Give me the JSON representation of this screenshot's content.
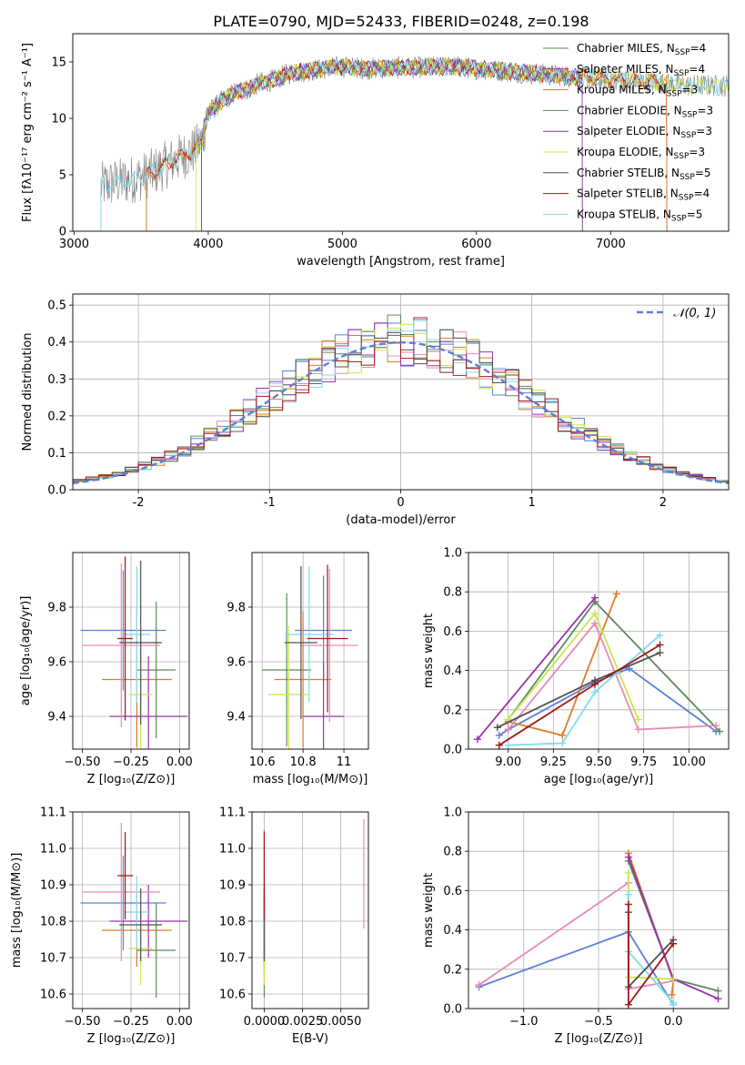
{
  "title": "PLATE=0790, MJD=52433, FIBERID=0248, z=0.198",
  "colors": {
    "grey": "#808080",
    "dark_grey": "#505050",
    "blue": "#5b7fd6",
    "orange": "#e07b28",
    "green": "#5a8a5a",
    "purple": "#9b30b0",
    "pink": "#e68ab8",
    "yellowgreen": "#c8e84a",
    "cyan": "#7fdcea",
    "red": "#a01818",
    "grid": "#b0b0b0"
  },
  "chart_data": [
    {
      "id": "spectrum",
      "type": "line",
      "xlabel": "wavelength [Angstrom, rest frame]",
      "ylabel": "Flux [fλ10⁻¹⁷ erg cm⁻² s⁻¹ A⁻¹]",
      "xlim": [
        2990,
        7880
      ],
      "ylim": [
        0,
        17.5
      ],
      "xticks": [
        3000,
        4000,
        5000,
        6000,
        7000
      ],
      "yticks": [
        0,
        5,
        10,
        15
      ],
      "grid": false,
      "legend_position": "upper right",
      "legend": [
        {
          "label": "Chabrier MILES, N",
          "sub": "SSP",
          "tail": "=4",
          "color": "#5a8a5a"
        },
        {
          "label": "Salpeter MILES, N",
          "sub": "SSP",
          "tail": "=4",
          "color": "#9b30b0"
        },
        {
          "label": "Kroupa MILES, N",
          "sub": "SSP",
          "tail": "=3",
          "color": "#e07b28"
        },
        {
          "label": "Chabrier ELODIE, N",
          "sub": "SSP",
          "tail": "=3",
          "color": "#5a8a5a"
        },
        {
          "label": "Salpeter ELODIE, N",
          "sub": "SSP",
          "tail": "=3",
          "color": "#9b30b0"
        },
        {
          "label": "Kroupa ELODIE, N",
          "sub": "SSP",
          "tail": "=3",
          "color": "#c8e84a"
        },
        {
          "label": "Chabrier STELIB, N",
          "sub": "SSP",
          "tail": "=5",
          "color": "#505050"
        },
        {
          "label": "Salpeter STELIB, N",
          "sub": "SSP",
          "tail": "=4",
          "color": "#a01818"
        },
        {
          "label": "Kroupa STELIB, N",
          "sub": "SSP",
          "tail": "=5",
          "color": "#7fdcea"
        }
      ],
      "continuum": {
        "x": [
          3200,
          3300,
          3400,
          3500,
          3600,
          3700,
          3800,
          3900,
          3950,
          4000,
          4100,
          4200,
          4300,
          4400,
          4500,
          4600,
          4800,
          5000,
          5200,
          5400,
          5600,
          5800,
          6000,
          6200,
          6400,
          6600,
          6800,
          7000,
          7200,
          7400,
          7600
        ],
        "y": [
          4.0,
          4.3,
          4.5,
          4.8,
          5.3,
          6.0,
          6.6,
          7.2,
          8.0,
          10.5,
          11.5,
          12.3,
          12.6,
          13.2,
          13.4,
          14.0,
          14.3,
          14.6,
          14.4,
          14.5,
          14.5,
          14.6,
          14.4,
          14.2,
          14.0,
          13.8,
          13.6,
          13.4,
          13.3,
          13.1,
          12.9
        ]
      }
    },
    {
      "id": "residuals",
      "type": "histogram",
      "xlabel": "(data-model)/error",
      "ylabel": "Normed distribution",
      "xlim": [
        -2.5,
        2.5
      ],
      "ylim": [
        0,
        0.53
      ],
      "xticks": [
        -2,
        -1,
        0,
        1,
        2
      ],
      "yticks": [
        0.0,
        0.1,
        0.2,
        0.3,
        0.4,
        0.5
      ],
      "grid": true,
      "legend_position": "upper right",
      "normal_label": "𝒩(0, 1)",
      "bin_width": 0.1
    },
    {
      "id": "age_vs_Z",
      "type": "errorbar",
      "xlabel": "Z [log₁₀(Z/Z⊙)]",
      "ylabel": "age  [log₁₀(age/yr)]",
      "xlim": [
        -0.55,
        0.05
      ],
      "ylim": [
        9.28,
        10.0
      ],
      "xticks": [
        -0.5,
        -0.25,
        0.0
      ],
      "xticklabels": [
        "−0.50",
        "−0.25",
        "0.00"
      ],
      "yticks": [
        9.4,
        9.6,
        9.8
      ],
      "grid": true,
      "points": [
        {
          "x": -0.29,
          "y": 9.715,
          "xerr": 0.22,
          "yerr": 0.22,
          "color": "#5b7fd6"
        },
        {
          "x": -0.22,
          "y": 9.535,
          "xerr": 0.18,
          "yerr": 0.25,
          "color": "#e07b28"
        },
        {
          "x": -0.12,
          "y": 9.57,
          "xerr": 0.1,
          "yerr": 0.25,
          "color": "#5a8a5a"
        },
        {
          "x": -0.16,
          "y": 9.4,
          "xerr": 0.2,
          "yerr": 0.22,
          "color": "#9b30b0"
        },
        {
          "x": -0.3,
          "y": 9.66,
          "xerr": 0.2,
          "yerr": 0.3,
          "color": "#e68ab8"
        },
        {
          "x": -0.2,
          "y": 9.48,
          "xerr": 0.06,
          "yerr": 0.25,
          "color": "#c8e84a"
        },
        {
          "x": -0.22,
          "y": 9.7,
          "xerr": 0.07,
          "yerr": 0.25,
          "color": "#7fdcea"
        },
        {
          "x": -0.2,
          "y": 9.67,
          "xerr": 0.11,
          "yerr": 0.3,
          "color": "#505050"
        },
        {
          "x": -0.28,
          "y": 9.685,
          "xerr": 0.04,
          "yerr": 0.3,
          "color": "#a01818"
        }
      ]
    },
    {
      "id": "age_vs_mass",
      "type": "errorbar",
      "xlabel": "mass [log₁₀(M/M⊙)]",
      "ylabel": "",
      "xlim": [
        10.55,
        11.12
      ],
      "ylim": [
        9.28,
        10.0
      ],
      "xticks": [
        10.6,
        10.8,
        11.0
      ],
      "yticks": [
        9.4,
        9.6,
        9.8
      ],
      "grid": true,
      "points": [
        {
          "x": 10.9,
          "y": 9.715,
          "xerr": 0.14,
          "yerr": 0.2,
          "color": "#5b7fd6"
        },
        {
          "x": 10.8,
          "y": 9.535,
          "xerr": 0.14,
          "yerr": 0.25,
          "color": "#e07b28"
        },
        {
          "x": 10.72,
          "y": 9.57,
          "xerr": 0.12,
          "yerr": 0.28,
          "color": "#5a8a5a"
        },
        {
          "x": 10.9,
          "y": 9.4,
          "xerr": 0.1,
          "yerr": 0.2,
          "color": "#9b30b0"
        },
        {
          "x": 10.93,
          "y": 9.66,
          "xerr": 0.14,
          "yerr": 0.28,
          "color": "#e68ab8"
        },
        {
          "x": 10.73,
          "y": 9.48,
          "xerr": 0.1,
          "yerr": 0.25,
          "color": "#c8e84a"
        },
        {
          "x": 10.83,
          "y": 9.7,
          "xerr": 0.12,
          "yerr": 0.25,
          "color": "#7fdcea"
        },
        {
          "x": 10.79,
          "y": 9.67,
          "xerr": 0.08,
          "yerr": 0.28,
          "color": "#505050"
        },
        {
          "x": 10.92,
          "y": 9.685,
          "xerr": 0.1,
          "yerr": 0.27,
          "color": "#a01818"
        }
      ]
    },
    {
      "id": "weight_vs_age",
      "type": "line",
      "xlabel": "age  [log₁₀(age/yr)]",
      "ylabel": "mass weight",
      "xlim": [
        8.78,
        10.22
      ],
      "ylim": [
        0,
        1.0
      ],
      "xticks": [
        9.0,
        9.25,
        9.5,
        9.75,
        10.0
      ],
      "xticklabels": [
        "9.00",
        "9.25",
        "9.50",
        "9.75",
        "10.00"
      ],
      "yticks": [
        0.0,
        0.2,
        0.4,
        0.6,
        0.8,
        1.0
      ],
      "grid": true,
      "series": [
        {
          "color": "#5b7fd6",
          "x": [
            8.95,
            9.0,
            9.48,
            9.67,
            10.15
          ],
          "y": [
            0.07,
            0.1,
            0.34,
            0.41,
            0.09
          ]
        },
        {
          "color": "#e07b28",
          "x": [
            9.0,
            9.3,
            9.6
          ],
          "y": [
            0.14,
            0.07,
            0.79
          ]
        },
        {
          "color": "#5a8a5a",
          "x": [
            9.0,
            9.48,
            10.17
          ],
          "y": [
            0.15,
            0.75,
            0.09
          ]
        },
        {
          "color": "#9b30b0",
          "x": [
            8.83,
            9.48
          ],
          "y": [
            0.05,
            0.77
          ]
        },
        {
          "color": "#e68ab8",
          "x": [
            9.0,
            9.48,
            9.72,
            10.15
          ],
          "y": [
            0.1,
            0.64,
            0.1,
            0.12
          ]
        },
        {
          "color": "#c8e84a",
          "x": [
            9.0,
            9.48,
            9.72
          ],
          "y": [
            0.15,
            0.69,
            0.15
          ]
        },
        {
          "color": "#7fdcea",
          "x": [
            9.0,
            9.3,
            9.48,
            9.84
          ],
          "y": [
            0.02,
            0.03,
            0.29,
            0.58
          ]
        },
        {
          "color": "#505050",
          "x": [
            8.94,
            9.48,
            9.84
          ],
          "y": [
            0.11,
            0.35,
            0.49
          ]
        },
        {
          "color": "#a01818",
          "x": [
            8.95,
            9.48,
            9.84
          ],
          "y": [
            0.02,
            0.33,
            0.53
          ]
        }
      ]
    },
    {
      "id": "mass_vs_Z",
      "type": "errorbar",
      "xlabel": "Z [log₁₀(Z/Z⊙)]",
      "ylabel": "mass [log₁₀(M/M⊙)]",
      "xlim": [
        -0.55,
        0.05
      ],
      "ylim": [
        10.56,
        11.1
      ],
      "xticks": [
        -0.5,
        -0.25,
        0.0
      ],
      "xticklabels": [
        "−0.50",
        "−0.25",
        "0.00"
      ],
      "yticks": [
        10.6,
        10.7,
        10.8,
        10.9,
        11.0,
        11.1
      ],
      "grid": true,
      "points": [
        {
          "x": -0.29,
          "y": 10.85,
          "xerr": 0.22,
          "yerr": 0.13,
          "color": "#5b7fd6"
        },
        {
          "x": -0.22,
          "y": 10.775,
          "xerr": 0.18,
          "yerr": 0.1,
          "color": "#e07b28"
        },
        {
          "x": -0.12,
          "y": 10.72,
          "xerr": 0.1,
          "yerr": 0.13,
          "color": "#5a8a5a"
        },
        {
          "x": -0.16,
          "y": 10.8,
          "xerr": 0.2,
          "yerr": 0.1,
          "color": "#9b30b0"
        },
        {
          "x": -0.3,
          "y": 10.88,
          "xerr": 0.2,
          "yerr": 0.19,
          "color": "#e68ab8"
        },
        {
          "x": -0.2,
          "y": 10.725,
          "xerr": 0.06,
          "yerr": 0.1,
          "color": "#c8e84a"
        },
        {
          "x": -0.22,
          "y": 10.825,
          "xerr": 0.07,
          "yerr": 0.1,
          "color": "#7fdcea"
        },
        {
          "x": -0.2,
          "y": 10.79,
          "xerr": 0.11,
          "yerr": 0.1,
          "color": "#505050"
        },
        {
          "x": -0.28,
          "y": 10.925,
          "xerr": 0.04,
          "yerr": 0.12,
          "color": "#a01818"
        }
      ]
    },
    {
      "id": "mass_vs_ebv",
      "type": "errorbar",
      "xlabel": "E(B-V)",
      "ylabel": "",
      "xlim": [
        -0.0008,
        0.0068
      ],
      "ylim": [
        10.56,
        11.1
      ],
      "xticks": [
        0.0,
        0.0025,
        0.005
      ],
      "xticklabels": [
        "0.0000",
        "0.0025",
        "0.0050"
      ],
      "yticks": [
        10.6,
        10.7,
        10.8,
        10.9,
        11.0,
        11.1
      ],
      "grid": true,
      "points": [
        {
          "x": 0.0,
          "y": 10.85,
          "xerr": 0,
          "yerr": 0.2,
          "color": "#5b7fd6"
        },
        {
          "x": 0.0,
          "y": 10.775,
          "xerr": 0,
          "yerr": 0.1,
          "color": "#e07b28"
        },
        {
          "x": 0.0,
          "y": 10.72,
          "xerr": 0,
          "yerr": 0.13,
          "color": "#5a8a5a"
        },
        {
          "x": 0.0,
          "y": 10.8,
          "xerr": 0,
          "yerr": 0.1,
          "color": "#9b30b0"
        },
        {
          "x": 0.0065,
          "y": 10.93,
          "xerr": 0,
          "yerr": 0.15,
          "color": "#e68ab8"
        },
        {
          "x": 0.0,
          "y": 10.725,
          "xerr": 0,
          "yerr": 0.1,
          "color": "#c8e84a"
        },
        {
          "x": 0.0,
          "y": 10.825,
          "xerr": 0,
          "yerr": 0.1,
          "color": "#7fdcea"
        },
        {
          "x": 0.0,
          "y": 10.79,
          "xerr": 0,
          "yerr": 0.1,
          "color": "#505050"
        },
        {
          "x": 0.0,
          "y": 10.925,
          "xerr": 0,
          "yerr": 0.12,
          "color": "#a01818"
        }
      ]
    },
    {
      "id": "weight_vs_Z",
      "type": "line",
      "xlabel": "Z [log₁₀(Z/Z⊙)]",
      "ylabel": "mass weight",
      "xlim": [
        -1.37,
        0.37
      ],
      "ylim": [
        0,
        1.0
      ],
      "xticks": [
        -1.0,
        -0.5,
        0.0
      ],
      "xticklabels": [
        "−1.0",
        "−0.5",
        "0.0"
      ],
      "yticks": [
        0.0,
        0.2,
        0.4,
        0.6,
        0.8,
        1.0
      ],
      "grid": true,
      "series": [
        {
          "color": "#5b7fd6",
          "x": [
            -1.3,
            -0.3,
            0.0
          ],
          "y": [
            0.11,
            0.39,
            0.02
          ]
        },
        {
          "color": "#e07b28",
          "x": [
            -0.3,
            0.0,
            -0.01
          ],
          "y": [
            0.79,
            0.14,
            0.07
          ]
        },
        {
          "color": "#5a8a5a",
          "x": [
            -0.3,
            0.0,
            0.3
          ],
          "y": [
            0.75,
            0.15,
            0.09
          ]
        },
        {
          "color": "#9b30b0",
          "x": [
            -0.3,
            0.0,
            0.3
          ],
          "y": [
            0.77,
            0.15,
            0.05
          ]
        },
        {
          "color": "#e68ab8",
          "x": [
            -1.3,
            -0.3,
            -0.3,
            0.0
          ],
          "y": [
            0.12,
            0.64,
            0.1,
            0.14
          ]
        },
        {
          "color": "#c8e84a",
          "x": [
            -0.3,
            -0.3,
            0.0
          ],
          "y": [
            0.69,
            0.16,
            0.15
          ]
        },
        {
          "color": "#7fdcea",
          "x": [
            -0.3,
            -0.3,
            0.0,
            0.0
          ],
          "y": [
            0.58,
            0.29,
            0.03,
            0.02
          ]
        },
        {
          "color": "#505050",
          "x": [
            -0.3,
            -0.3,
            0.0
          ],
          "y": [
            0.49,
            0.11,
            0.35
          ]
        },
        {
          "color": "#a01818",
          "x": [
            -0.3,
            -0.3,
            0.0
          ],
          "y": [
            0.53,
            0.02,
            0.33
          ]
        }
      ]
    }
  ]
}
